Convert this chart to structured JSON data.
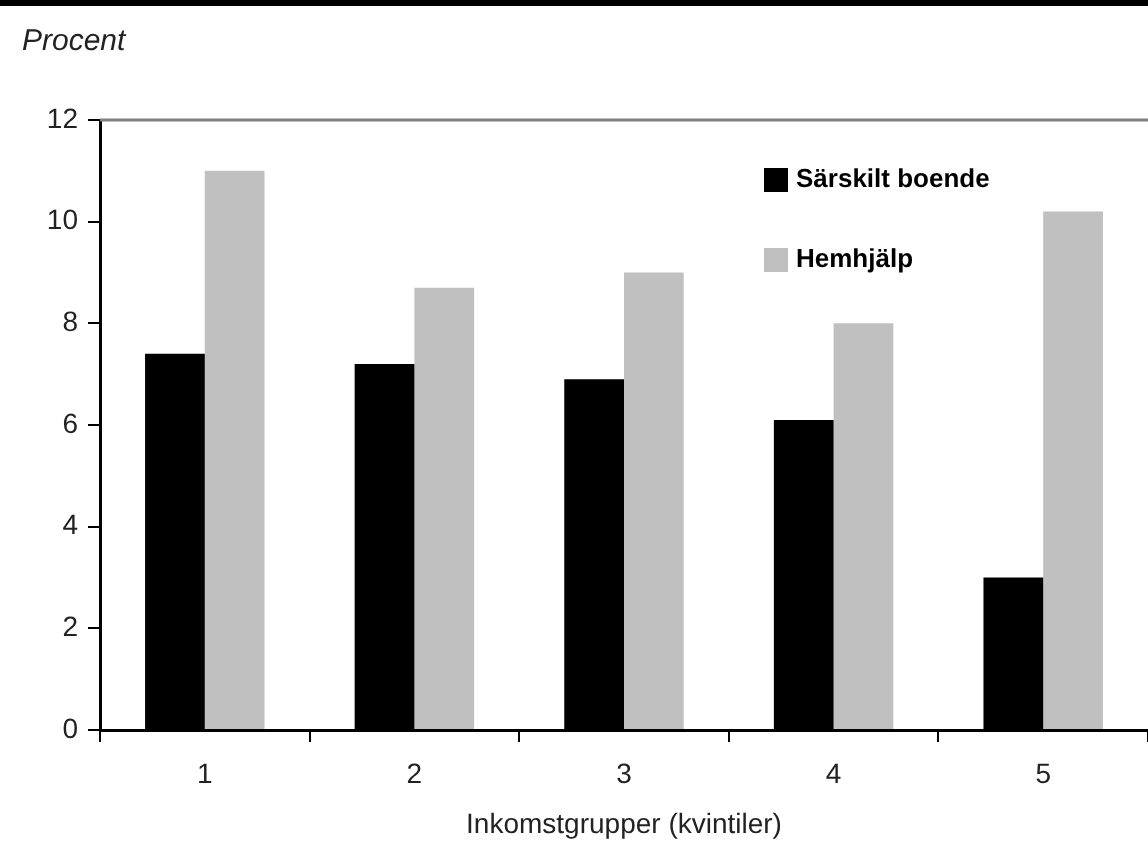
{
  "chart_data": {
    "type": "bar",
    "ylabel": "Procent",
    "xlabel": "Inkomstgrupper (kvintiler)",
    "categories": [
      "1",
      "2",
      "3",
      "4",
      "5"
    ],
    "series": [
      {
        "name": "Särskilt boende",
        "color": "#000000",
        "values": [
          7.4,
          7.2,
          6.9,
          6.1,
          3.0
        ]
      },
      {
        "name": "Hemhjälp",
        "color": "#c0c0c0",
        "values": [
          11.0,
          8.7,
          9.0,
          8.0,
          10.2
        ]
      }
    ],
    "ylim": [
      0,
      12
    ],
    "yticks": [
      0,
      2,
      4,
      6,
      8,
      10,
      12
    ],
    "grid": false,
    "legend": "top right"
  }
}
